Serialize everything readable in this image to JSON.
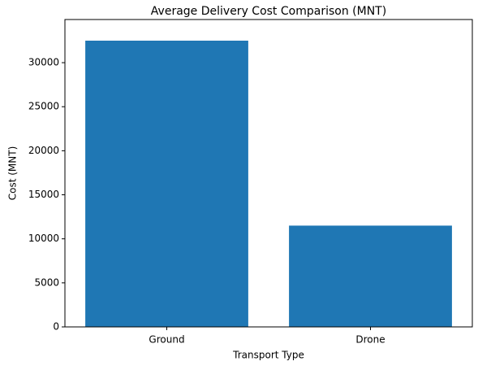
{
  "chart_data": {
    "type": "bar",
    "title": "Average Delivery Cost Comparison (MNT)",
    "x_label": "Transport Type",
    "y_label": "Cost (MNT)",
    "categories": [
      "Ground",
      "Drone"
    ],
    "values": [
      32500,
      11500
    ],
    "color": "#1f77b4",
    "ylim": [
      0,
      34900
    ],
    "yticks": [
      0,
      5000,
      10000,
      15000,
      20000,
      25000,
      30000
    ]
  }
}
